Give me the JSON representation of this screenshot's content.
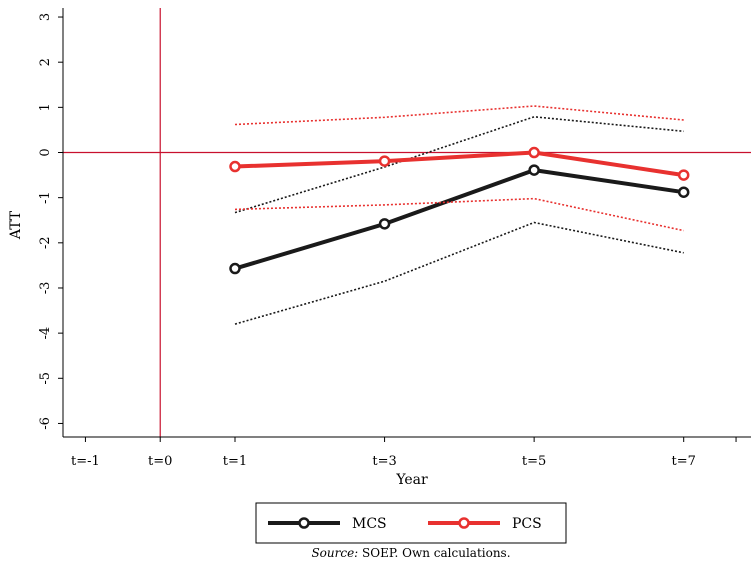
{
  "chart_data": {
    "type": "line",
    "xlabel": "Year",
    "ylabel": "ATT",
    "x_ticks": [
      -1,
      0,
      1,
      3,
      5,
      7
    ],
    "x_tick_labels": [
      "t=-1",
      "t=0",
      "t=1",
      "t=3",
      "t=5",
      "t=7"
    ],
    "y_ticks": [
      -6,
      -5,
      -4,
      -3,
      -2,
      -1,
      0,
      1,
      2,
      3
    ],
    "y_tick_labels": [
      "-6",
      "-5",
      "-4",
      "-3",
      "-2",
      "-1",
      "0",
      "1",
      "2",
      "3"
    ],
    "xlim": [
      -1.3,
      7.9
    ],
    "ylim": [
      -6.3,
      3.2
    ],
    "reference_lines": {
      "vertical_x": 0,
      "horizontal_y": 0,
      "color": "#c8102e"
    },
    "series": [
      {
        "name": "MCS",
        "color": "#1a1a1a",
        "x": [
          1,
          3,
          5,
          7
        ],
        "values": [
          -2.57,
          -1.58,
          -0.39,
          -0.88
        ],
        "ci_lower": [
          -3.8,
          -2.85,
          -1.55,
          -2.22
        ],
        "ci_upper": [
          -1.33,
          -0.32,
          0.79,
          0.47
        ]
      },
      {
        "name": "PCS",
        "color": "#e8312f",
        "x": [
          1,
          3,
          5,
          7
        ],
        "values": [
          -0.31,
          -0.19,
          0.0,
          -0.5
        ],
        "ci_lower": [
          -1.26,
          -1.16,
          -1.02,
          -1.73
        ],
        "ci_upper": [
          0.62,
          0.78,
          1.03,
          0.72
        ]
      }
    ],
    "legend": {
      "placement": "bottom"
    },
    "source_prefix": "Source:",
    "source_text": " SOEP. Own calculations."
  }
}
